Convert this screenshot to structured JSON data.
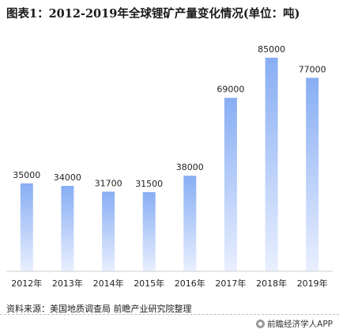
{
  "header": {
    "title": "图表1：2012-2019年全球锂矿产量变化情况(单位：吨)"
  },
  "chart_data": {
    "type": "bar",
    "categories": [
      "2012年",
      "2013年",
      "2014年",
      "2015年",
      "2016年",
      "2017年",
      "2018年",
      "2019年"
    ],
    "values": [
      35000,
      34000,
      31700,
      31500,
      38000,
      69000,
      85000,
      77000
    ],
    "data_labels": [
      "35000",
      "34000",
      "31700",
      "31500",
      "38000",
      "69000",
      "85000",
      "77000"
    ],
    "ylim": [
      0,
      90000
    ],
    "grid": false,
    "legend": "none",
    "bar_color_top": "#88aef3",
    "bar_color_bottom": "#e9efff"
  },
  "footer": {
    "source": "资料来源：美国地质调查局 前瞻产业研究院整理",
    "brand": "前瞻经济学人APP"
  }
}
